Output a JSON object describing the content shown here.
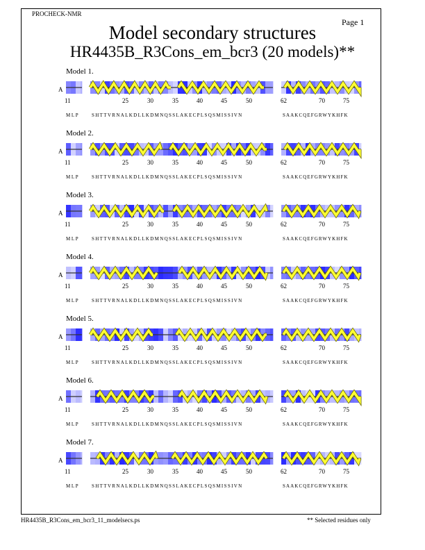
{
  "header": {
    "program": "PROCHECK-NMR",
    "page_label": "Page  1",
    "title": "Model secondary structures",
    "subtitle": "HR4435B_R3Cons_em_bcr3 (20 models)**"
  },
  "footer": {
    "filename": "HR4435B_R3Cons_em_bcr3_11_modelsecs.ps",
    "note": "** Selected residues only"
  },
  "chain_label": "A",
  "sequence": {
    "segment1": "MLP",
    "segment2": "SHTTVRNALKDLLKDMNQSSLAKECPLSQSMISSIVN",
    "segment3": "SAAKCQEFGRWYKHFK"
  },
  "residue_numbers": [
    "11",
    "25",
    "30",
    "35",
    "40",
    "45",
    "50",
    "62",
    "70",
    "75"
  ],
  "models": [
    {
      "label": "Model  1."
    },
    {
      "label": "Model  2."
    },
    {
      "label": "Model  3."
    },
    {
      "label": "Model  4."
    },
    {
      "label": "Model  5."
    },
    {
      "label": "Model  6."
    },
    {
      "label": "Model  7."
    }
  ],
  "colors": {
    "helix": "#ffff33",
    "helix_edge": "#6b6b00",
    "shade_dark": "#1e1eff",
    "shade_light": "#ffffff"
  }
}
